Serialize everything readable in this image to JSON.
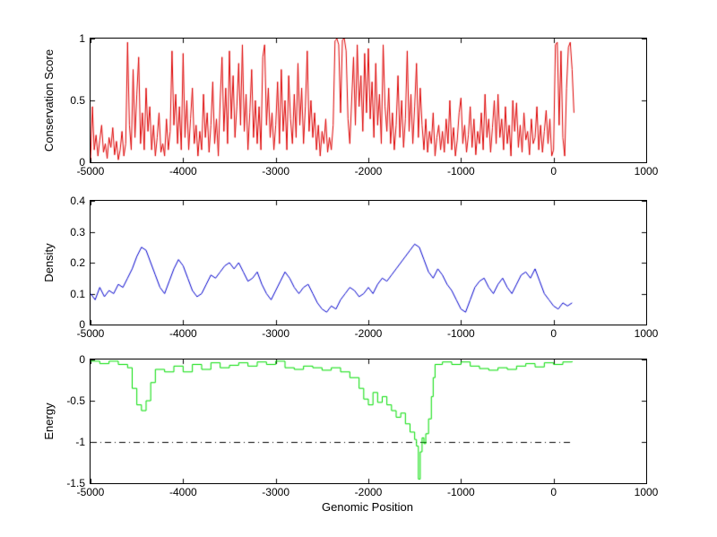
{
  "chart_data": {
    "type": "line",
    "layout": "three stacked subplots sharing one x axis, grid off, no legend, MATLAB-style boxed axes with inward ticks",
    "grid": false,
    "xlabel": "Genomic Position",
    "x_range": [
      -5000,
      1000
    ],
    "x_ticks": [
      -5000,
      -4000,
      -3000,
      -2000,
      -1000,
      0,
      1000
    ],
    "xtick_labels": [
      "-5000",
      "-4000",
      "-3000",
      "-2000",
      "-1000",
      "0",
      "1000"
    ],
    "subplots": [
      {
        "ylabel": "Conservation Score",
        "y_range": [
          0,
          1
        ],
        "y_ticks": [
          0,
          0.5,
          1
        ],
        "ytick_labels": [
          "1",
          "0.5",
          "0"
        ],
        "color": "#dd0000",
        "series": {
          "x_start": -5000,
          "x_step": 20,
          "y": [
            0.02,
            0.45,
            0.1,
            0.22,
            0.05,
            0.18,
            0.3,
            0.08,
            0.15,
            0.03,
            0.2,
            0.12,
            0.28,
            0.06,
            0.17,
            0.02,
            0.1,
            0.25,
            0.05,
            0.15,
            0.97,
            0.3,
            0.1,
            0.75,
            0.2,
            0.55,
            0.85,
            0.15,
            0.4,
            0.1,
            0.6,
            0.25,
            0.45,
            0.1,
            0.3,
            0.05,
            0.2,
            0.4,
            0.08,
            0.15,
            0.05,
            0.35,
            0.1,
            0.25,
            0.9,
            0.3,
            0.55,
            0.15,
            0.45,
            0.1,
            0.88,
            0.2,
            0.5,
            0.1,
            0.35,
            0.6,
            0.15,
            0.3,
            0.05,
            0.25,
            0.1,
            0.55,
            0.2,
            0.4,
            0.08,
            0.3,
            0.65,
            0.15,
            0.35,
            0.05,
            0.5,
            0.85,
            0.25,
            0.6,
            0.15,
            0.9,
            0.35,
            0.7,
            0.2,
            0.45,
            0.8,
            0.3,
            0.95,
            0.25,
            0.55,
            0.1,
            0.4,
            0.75,
            0.2,
            0.5,
            0.15,
            0.45,
            0.1,
            0.85,
            0.95,
            0.3,
            0.6,
            0.2,
            0.4,
            0.1,
            0.3,
            0.65,
            0.15,
            0.75,
            0.25,
            0.5,
            0.1,
            0.7,
            0.35,
            0.15,
            0.55,
            0.2,
            0.8,
            0.3,
            0.6,
            0.15,
            0.45,
            0.9,
            0.25,
            0.5,
            0.2,
            0.4,
            0.1,
            0.3,
            0.05,
            0.25,
            0.15,
            0.35,
            0.08,
            0.2,
            0.1,
            0.3,
            0.98,
            1.0,
            0.95,
            0.4,
            0.99,
            1.0,
            0.9,
            0.35,
            0.15,
            0.5,
            0.85,
            0.3,
            0.95,
            0.45,
            0.7,
            0.25,
            0.88,
            0.4,
            0.92,
            0.35,
            0.65,
            0.2,
            0.8,
            0.3,
            0.55,
            0.15,
            0.95,
            0.45,
            0.25,
            0.6,
            0.15,
            0.4,
            0.1,
            0.3,
            0.7,
            0.2,
            0.5,
            0.12,
            0.35,
            0.9,
            0.25,
            0.55,
            0.15,
            0.45,
            0.8,
            0.2,
            0.6,
            0.3,
            0.1,
            0.35,
            0.08,
            0.25,
            0.15,
            0.4,
            0.05,
            0.2,
            0.3,
            0.1,
            0.25,
            0.08,
            0.35,
            0.15,
            0.5,
            0.1,
            0.28,
            0.05,
            0.18,
            0.4,
            0.52,
            0.15,
            0.3,
            0.08,
            0.22,
            0.45,
            0.12,
            0.35,
            0.06,
            0.25,
            0.15,
            0.4,
            0.1,
            0.55,
            0.2,
            0.35,
            0.08,
            0.28,
            0.5,
            0.15,
            0.55,
            0.2,
            0.35,
            0.1,
            0.45,
            0.15,
            0.3,
            0.05,
            0.5,
            0.25,
            0.48,
            0.12,
            0.3,
            0.08,
            0.4,
            0.18,
            0.25,
            0.06,
            0.35,
            0.15,
            0.2,
            0.45,
            0.1,
            0.3,
            0.08,
            0.25,
            0.42,
            0.15,
            0.35,
            0.05,
            0.1,
            0.95,
            0.97,
            0.3,
            0.9,
            0.2,
            0.05,
            0.6,
            0.93,
            0.97,
            0.75,
            0.4
          ]
        }
      },
      {
        "ylabel": "Density",
        "y_range": [
          0,
          0.4
        ],
        "y_ticks": [
          0,
          0.1,
          0.2,
          0.3,
          0.4
        ],
        "ytick_labels": [
          "0.4",
          "0.3",
          "0.2",
          "0.1",
          "0"
        ],
        "color": "#0000cc",
        "series": {
          "x_start": -5000,
          "x_step": 50,
          "y": [
            0.1,
            0.08,
            0.12,
            0.09,
            0.11,
            0.1,
            0.13,
            0.12,
            0.15,
            0.18,
            0.22,
            0.25,
            0.24,
            0.2,
            0.16,
            0.12,
            0.1,
            0.14,
            0.18,
            0.21,
            0.19,
            0.15,
            0.11,
            0.09,
            0.1,
            0.13,
            0.16,
            0.15,
            0.17,
            0.19,
            0.2,
            0.18,
            0.2,
            0.17,
            0.14,
            0.15,
            0.17,
            0.13,
            0.1,
            0.08,
            0.11,
            0.14,
            0.17,
            0.15,
            0.12,
            0.1,
            0.12,
            0.13,
            0.1,
            0.07,
            0.05,
            0.04,
            0.06,
            0.05,
            0.08,
            0.1,
            0.12,
            0.11,
            0.09,
            0.1,
            0.12,
            0.1,
            0.13,
            0.15,
            0.14,
            0.16,
            0.18,
            0.2,
            0.22,
            0.24,
            0.26,
            0.25,
            0.21,
            0.17,
            0.15,
            0.18,
            0.16,
            0.13,
            0.11,
            0.08,
            0.05,
            0.04,
            0.08,
            0.12,
            0.14,
            0.15,
            0.12,
            0.1,
            0.13,
            0.15,
            0.12,
            0.1,
            0.13,
            0.16,
            0.17,
            0.15,
            0.18,
            0.14,
            0.1,
            0.08,
            0.06,
            0.05,
            0.07,
            0.06,
            0.07
          ]
        }
      },
      {
        "ylabel": "Energy",
        "y_range": [
          -1.5,
          0
        ],
        "y_ticks": [
          -1.5,
          -1,
          -0.5,
          0
        ],
        "ytick_labels": [
          "0",
          "-0.5",
          "-1",
          "-1.5"
        ],
        "color": "#00dd00",
        "series_step": [
          [
            -5000,
            -0.02
          ],
          [
            -4900,
            -0.05
          ],
          [
            -4800,
            -0.02
          ],
          [
            -4700,
            -0.06
          ],
          [
            -4600,
            -0.1
          ],
          [
            -4550,
            -0.35
          ],
          [
            -4500,
            -0.55
          ],
          [
            -4450,
            -0.62
          ],
          [
            -4400,
            -0.5
          ],
          [
            -4350,
            -0.28
          ],
          [
            -4300,
            -0.12
          ],
          [
            -4200,
            -0.15
          ],
          [
            -4100,
            -0.08
          ],
          [
            -4000,
            -0.15
          ],
          [
            -3900,
            -0.06
          ],
          [
            -3800,
            -0.12
          ],
          [
            -3700,
            -0.04
          ],
          [
            -3600,
            -0.1
          ],
          [
            -3500,
            -0.07
          ],
          [
            -3400,
            -0.04
          ],
          [
            -3300,
            -0.08
          ],
          [
            -3200,
            -0.03
          ],
          [
            -3100,
            -0.06
          ],
          [
            -3000,
            -0.02
          ],
          [
            -2900,
            -0.1
          ],
          [
            -2800,
            -0.12
          ],
          [
            -2700,
            -0.08
          ],
          [
            -2600,
            -0.1
          ],
          [
            -2500,
            -0.13
          ],
          [
            -2400,
            -0.1
          ],
          [
            -2300,
            -0.15
          ],
          [
            -2200,
            -0.22
          ],
          [
            -2100,
            -0.35
          ],
          [
            -2050,
            -0.48
          ],
          [
            -2000,
            -0.55
          ],
          [
            -1950,
            -0.4
          ],
          [
            -1900,
            -0.52
          ],
          [
            -1850,
            -0.45
          ],
          [
            -1800,
            -0.55
          ],
          [
            -1750,
            -0.62
          ],
          [
            -1700,
            -0.7
          ],
          [
            -1650,
            -0.65
          ],
          [
            -1600,
            -0.78
          ],
          [
            -1550,
            -0.88
          ],
          [
            -1500,
            -0.97
          ],
          [
            -1480,
            -1.05
          ],
          [
            -1460,
            -1.45
          ],
          [
            -1440,
            -1.12
          ],
          [
            -1420,
            -0.95
          ],
          [
            -1400,
            -1.02
          ],
          [
            -1380,
            -0.9
          ],
          [
            -1350,
            -0.72
          ],
          [
            -1320,
            -0.45
          ],
          [
            -1300,
            -0.22
          ],
          [
            -1280,
            -0.06
          ],
          [
            -1200,
            -0.03
          ],
          [
            -1100,
            -0.06
          ],
          [
            -1000,
            -0.03
          ],
          [
            -900,
            -0.08
          ],
          [
            -800,
            -0.11
          ],
          [
            -700,
            -0.13
          ],
          [
            -600,
            -0.1
          ],
          [
            -500,
            -0.12
          ],
          [
            -400,
            -0.08
          ],
          [
            -300,
            -0.05
          ],
          [
            -200,
            -0.09
          ],
          [
            -100,
            -0.04
          ],
          [
            0,
            -0.06
          ],
          [
            100,
            -0.03
          ],
          [
            200,
            -0.02
          ]
        ],
        "reference_line": {
          "y": -1,
          "style": "dash-dot",
          "color": "#000000",
          "x_start": -5000,
          "x_end": 200
        }
      }
    ]
  }
}
